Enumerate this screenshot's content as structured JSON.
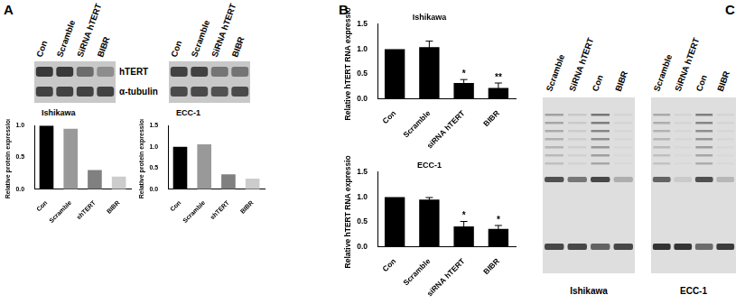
{
  "panel_labels": [
    "A",
    "B",
    "C"
  ],
  "blots": [
    {
      "caption": "Ishikawa",
      "lanes": [
        "Con",
        "Scramble",
        "SiRNA hTERT",
        "BIBR"
      ],
      "rows": [
        "hTERT",
        "α-tubulin"
      ]
    },
    {
      "caption": "ECC-1",
      "lanes": [
        "Con",
        "Scramble",
        "SiRNA hTERT",
        "BIBR"
      ],
      "rows": [
        "hTERT",
        "α-tubulin"
      ]
    }
  ],
  "gels": [
    {
      "caption": "Ishikawa",
      "lanes": [
        "Scramble",
        "SiRNA hTERT",
        "Con",
        "BIBR"
      ]
    },
    {
      "caption": "ECC-1",
      "lanes": [
        "Scramble",
        "SiRNA hTERT",
        "Con",
        "BIBR"
      ]
    }
  ],
  "chart_data": [
    {
      "type": "bar",
      "ylabel": "Relative protein expression",
      "categories": [
        "Con",
        "Scramble",
        "shTERT",
        "BIBR"
      ],
      "values": [
        1.0,
        0.95,
        0.3,
        0.2
      ],
      "colors": [
        "#000000",
        "#999999",
        "#808080",
        "#cccccc"
      ],
      "ylim": [
        0,
        1.0
      ],
      "yticks": [
        {
          "value": 0,
          "label": "0.0"
        },
        0.5,
        {
          "value": 1,
          "label": "1.0"
        }
      ],
      "grid": false
    },
    {
      "type": "bar",
      "ylabel": "Relative protein expression",
      "categories": [
        "Con",
        "Scramble",
        "shTERT",
        "BIBR"
      ],
      "values": [
        1.0,
        1.06,
        0.35,
        0.25
      ],
      "colors": [
        "#000000",
        "#999999",
        "#808080",
        "#cccccc"
      ],
      "ylim": [
        0,
        1.5
      ],
      "yticks": [
        {
          "value": 0,
          "label": "0.0"
        },
        0.5,
        {
          "value": 1,
          "label": "1.0"
        },
        1.5
      ],
      "grid": false
    },
    {
      "type": "bar",
      "title": "Ishikawa",
      "ylabel": "Relative hTERT RNA expression",
      "categories": [
        "Con",
        "Scramble",
        "siRNA hTERT",
        "BIBR"
      ],
      "values": [
        1.0,
        1.04,
        0.32,
        0.22
      ],
      "errors": [
        null,
        0.12,
        0.07,
        0.1
      ],
      "annotations": [
        null,
        null,
        "*",
        "**"
      ],
      "color": "#000000",
      "ylim": [
        0,
        1.5
      ],
      "yticks": [
        {
          "value": 0,
          "label": "0.0"
        },
        0.5,
        {
          "value": 1,
          "label": "1.0"
        },
        1.5
      ],
      "grid": false
    },
    {
      "type": "bar",
      "title": "ECC-1",
      "ylabel": "Relative hTERT RNA expression",
      "categories": [
        "Con",
        "Scramble",
        "siRNA hTERT",
        "BIBR"
      ],
      "values": [
        1.0,
        0.95,
        0.41,
        0.36
      ],
      "errors": [
        null,
        0.04,
        0.1,
        0.07
      ],
      "annotations": [
        null,
        null,
        "*",
        "*"
      ],
      "color": "#000000",
      "ylim": [
        0,
        1.5
      ],
      "yticks": [
        {
          "value": 0,
          "label": "0.0"
        },
        0.5,
        {
          "value": 1,
          "label": "1.0"
        },
        1.5
      ],
      "grid": false
    }
  ]
}
